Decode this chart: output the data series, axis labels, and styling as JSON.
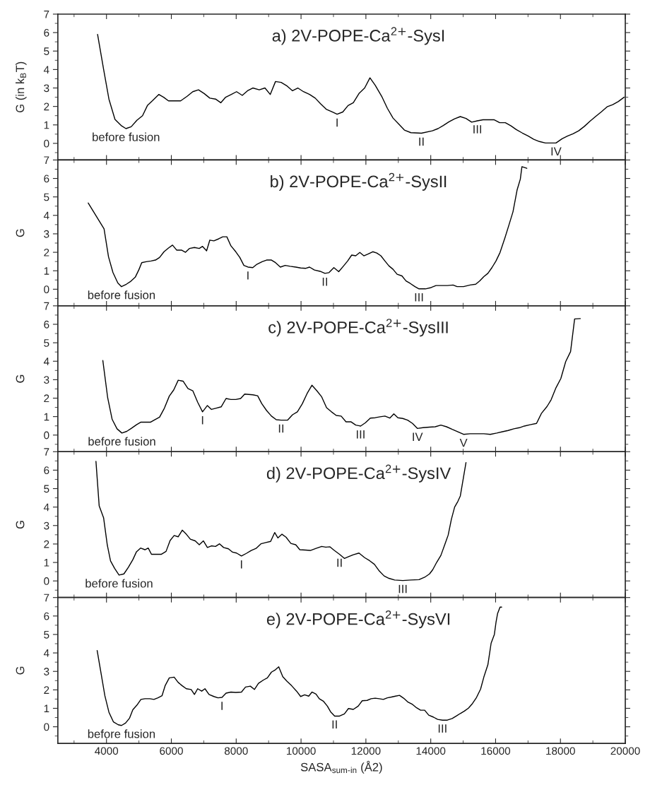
{
  "chart_data": [
    {
      "type": "line",
      "title": "a) 2V-POPE-Ca$^{2+}$-SysI",
      "ylabel": "G (in k$_{B}$T)",
      "color": "#000000",
      "tick_labels": "y",
      "xlim": [
        2500,
        20000
      ],
      "ylim": [
        -0.9,
        7
      ],
      "xticks": [
        4000,
        6000,
        8000,
        10000,
        12000,
        14000,
        16000,
        18000,
        20000
      ],
      "yticks": [
        0,
        1,
        2,
        3,
        4,
        5,
        6,
        7
      ],
      "x": [
        3725,
        3912,
        4075,
        4262,
        4450,
        4600,
        4762,
        4937,
        5112,
        5262,
        5412,
        5612,
        5762,
        5912,
        6112,
        6287,
        6487,
        6662,
        6837,
        7012,
        7187,
        7362,
        7525,
        7675,
        7850,
        8012,
        8187,
        8350,
        8512,
        8712,
        8887,
        9050,
        9212,
        9387,
        9575,
        9737,
        9900,
        10075,
        10262,
        10437,
        10600,
        10775,
        10962,
        11112,
        11287,
        11450,
        11612,
        11787,
        11962,
        12125,
        12287,
        12487,
        12662,
        12837,
        13012,
        13187,
        13387,
        13712,
        14050,
        14225,
        14387,
        14562,
        14737,
        14912,
        15087,
        15262,
        15437,
        15612,
        15950,
        16125,
        16300,
        16475,
        16637,
        16825,
        17000,
        17175,
        17350,
        17537,
        17862,
        18050,
        18225,
        18387,
        18562,
        18737,
        18912,
        19087,
        19262,
        19437,
        19612,
        19787,
        19962
      ],
      "values": [
        5.9,
        4.0,
        2.4,
        1.3,
        0.97,
        0.8,
        0.9,
        1.25,
        1.5,
        2.05,
        2.3,
        2.65,
        2.5,
        2.3,
        2.3,
        2.3,
        2.55,
        2.8,
        2.9,
        2.7,
        2.45,
        2.4,
        2.2,
        2.5,
        2.65,
        2.8,
        2.6,
        2.85,
        3.0,
        2.9,
        3.0,
        2.65,
        3.35,
        3.3,
        3.1,
        2.85,
        3.0,
        2.8,
        2.65,
        2.45,
        2.15,
        1.85,
        1.7,
        1.58,
        1.7,
        2.05,
        2.2,
        2.7,
        3.0,
        3.55,
        3.15,
        2.55,
        1.9,
        1.37,
        1.05,
        0.72,
        0.58,
        0.55,
        0.68,
        0.8,
        0.97,
        1.17,
        1.33,
        1.45,
        1.35,
        1.15,
        1.22,
        1.28,
        1.28,
        1.12,
        1.12,
        0.95,
        0.75,
        0.56,
        0.4,
        0.22,
        0.1,
        0.02,
        0.02,
        0.25,
        0.4,
        0.52,
        0.68,
        0.92,
        1.2,
        1.46,
        1.71,
        1.98,
        2.1,
        2.27,
        2.5
      ],
      "annotations": [
        {
          "text": "before fusion",
          "x": 4600,
          "y": 0.8
        },
        {
          "text": "I",
          "x": 11112,
          "y": 1.58
        },
        {
          "text": "II",
          "x": 13712,
          "y": 0.55
        },
        {
          "text": "III",
          "x": 15437,
          "y": 1.22
        },
        {
          "text": "IV",
          "x": 17862,
          "y": 0.02
        }
      ]
    },
    {
      "type": "line",
      "title": "b) 2V-POPE-Ca$^{2+}$-SysII",
      "ylabel": "G",
      "color": "#000000",
      "tick_labels": "y",
      "xlim": [
        2500,
        20000
      ],
      "ylim": [
        -0.9,
        7
      ],
      "xticks": [
        4000,
        6000,
        8000,
        10000,
        12000,
        14000,
        16000,
        18000,
        20000
      ],
      "yticks": [
        0,
        1,
        2,
        3,
        4,
        5,
        6,
        7
      ],
      "x": [
        3437,
        3925,
        4062,
        4200,
        4350,
        4462,
        4612,
        4750,
        4887,
        5000,
        5087,
        5225,
        5375,
        5512,
        5637,
        5775,
        5912,
        6037,
        6162,
        6312,
        6437,
        6562,
        6712,
        6862,
        6962,
        7087,
        7187,
        7312,
        7462,
        7587,
        7712,
        7837,
        7987,
        8112,
        8237,
        8362,
        8512,
        8637,
        8800,
        8937,
        9087,
        9212,
        9362,
        9512,
        9662,
        9837,
        9987,
        10137,
        10262,
        10412,
        10587,
        10737,
        10862,
        11012,
        11162,
        11312,
        11437,
        11562,
        11687,
        11812,
        11937,
        12062,
        12212,
        12337,
        12462,
        12587,
        12712,
        12837,
        12962,
        13112,
        13237,
        13362,
        13512,
        13637,
        13837,
        14012,
        14162,
        14337,
        14512,
        14687,
        14812,
        15012,
        15212,
        15387,
        15512,
        15637,
        15762,
        15887,
        16012,
        16137,
        16287,
        16412,
        16537,
        16662,
        16762,
        16812,
        16962
      ],
      "values": [
        4.67,
        3.27,
        1.76,
        0.9,
        0.34,
        0.14,
        0.27,
        0.43,
        0.65,
        1.06,
        1.44,
        1.49,
        1.53,
        1.58,
        1.72,
        2.03,
        2.23,
        2.39,
        2.12,
        2.12,
        2.0,
        2.21,
        2.26,
        2.21,
        2.32,
        2.08,
        2.66,
        2.62,
        2.73,
        2.84,
        2.84,
        2.35,
        2.03,
        1.72,
        1.29,
        1.2,
        1.17,
        1.35,
        1.49,
        1.58,
        1.58,
        1.44,
        1.2,
        1.29,
        1.24,
        1.2,
        1.15,
        1.13,
        1.2,
        1.04,
        0.97,
        0.86,
        0.9,
        1.17,
        0.95,
        1.26,
        1.53,
        1.85,
        1.81,
        1.99,
        1.81,
        1.9,
        2.03,
        1.96,
        1.81,
        1.53,
        1.26,
        1.08,
        0.81,
        0.72,
        0.45,
        0.32,
        0.14,
        0.02,
        0.02,
        0.09,
        0.2,
        0.2,
        0.2,
        0.23,
        0.14,
        0.14,
        0.23,
        0.27,
        0.45,
        0.68,
        0.86,
        1.17,
        1.53,
        1.99,
        2.78,
        3.48,
        4.2,
        5.37,
        5.96,
        6.64,
        6.55
      ],
      "annotations": [
        {
          "text": "before fusion",
          "x": 4462,
          "y": 0.14
        },
        {
          "text": "I",
          "x": 8362,
          "y": 1.2
        },
        {
          "text": "II",
          "x": 10737,
          "y": 0.86
        },
        {
          "text": "III",
          "x": 13637,
          "y": 0.02
        }
      ]
    },
    {
      "type": "line",
      "title": "c) 2V-POPE-Ca$^{2+}$-SysIII",
      "ylabel": "G",
      "color": "#000000",
      "tick_labels": "y",
      "xlim": [
        2500,
        20000
      ],
      "ylim": [
        -0.9,
        7
      ],
      "xticks": [
        4000,
        6000,
        8000,
        10000,
        12000,
        14000,
        16000,
        18000,
        20000
      ],
      "yticks": [
        0,
        1,
        2,
        3,
        4,
        5,
        6,
        7
      ],
      "x": [
        3887,
        4037,
        4175,
        4325,
        4475,
        4625,
        4762,
        4925,
        5062,
        5212,
        5362,
        5487,
        5637,
        5787,
        5937,
        6075,
        6212,
        6362,
        6512,
        6662,
        6812,
        6962,
        7112,
        7237,
        7387,
        7537,
        7687,
        7837,
        7987,
        8137,
        8262,
        8387,
        8512,
        8662,
        8787,
        8937,
        9087,
        9237,
        9387,
        9587,
        9737,
        9887,
        10037,
        10187,
        10337,
        10487,
        10637,
        10787,
        10937,
        11087,
        11237,
        11387,
        11537,
        11687,
        11837,
        11987,
        12137,
        12287,
        12437,
        12587,
        12737,
        12862,
        12987,
        13137,
        13287,
        13437,
        13587,
        13762,
        13962,
        14137,
        14312,
        14487,
        14662,
        14837,
        15012,
        15212,
        15437,
        15637,
        15837,
        16037,
        16212,
        16387,
        16562,
        16737,
        16887,
        17062,
        17262,
        17412,
        17587,
        17712,
        17862,
        18012,
        18162,
        18312,
        18437,
        18612
      ],
      "values": [
        4.04,
        2.02,
        0.85,
        0.34,
        0.11,
        0.2,
        0.36,
        0.56,
        0.7,
        0.7,
        0.7,
        0.83,
        0.97,
        1.46,
        2.11,
        2.45,
        2.97,
        2.92,
        2.52,
        2.4,
        1.78,
        1.26,
        1.6,
        1.39,
        1.46,
        1.53,
        1.98,
        1.93,
        1.93,
        1.98,
        2.22,
        2.2,
        2.18,
        2.13,
        1.71,
        1.33,
        1.03,
        0.83,
        0.81,
        0.81,
        1.1,
        1.26,
        1.69,
        2.25,
        2.7,
        2.4,
        2.07,
        1.48,
        1.26,
        1.06,
        1.03,
        0.72,
        0.72,
        0.54,
        0.49,
        0.67,
        0.92,
        0.94,
        0.99,
        1.03,
        0.92,
        1.15,
        0.94,
        0.9,
        0.81,
        0.63,
        0.36,
        0.4,
        0.43,
        0.45,
        0.54,
        0.45,
        0.31,
        0.18,
        0.04,
        0.07,
        0.07,
        0.07,
        0.04,
        0.11,
        0.18,
        0.25,
        0.34,
        0.4,
        0.49,
        0.56,
        0.63,
        1.17,
        1.55,
        1.91,
        2.56,
        3.06,
        3.98,
        4.52,
        6.29,
        6.31
      ],
      "annotations": [
        {
          "text": "before fusion",
          "x": 4475,
          "y": 0.11
        },
        {
          "text": "I",
          "x": 6962,
          "y": 1.26
        },
        {
          "text": "II",
          "x": 9387,
          "y": 0.81
        },
        {
          "text": "III",
          "x": 11837,
          "y": 0.49
        },
        {
          "text": "IV",
          "x": 13587,
          "y": 0.36
        },
        {
          "text": "V",
          "x": 15012,
          "y": 0.04
        }
      ]
    },
    {
      "type": "line",
      "title": "d) 2V-POPE-Ca$^{2+}$-SysIV",
      "ylabel": "G",
      "color": "#000000",
      "tick_labels": "y",
      "xlim": [
        2500,
        20000
      ],
      "ylim": [
        -0.9,
        7
      ],
      "xticks": [
        4000,
        6000,
        8000,
        10000,
        12000,
        14000,
        16000,
        18000,
        20000
      ],
      "yticks": [
        0,
        1,
        2,
        3,
        4,
        5,
        6,
        7
      ],
      "x": [
        3675,
        3775,
        3912,
        4025,
        4125,
        4250,
        4387,
        4537,
        4675,
        4812,
        4925,
        5050,
        5187,
        5287,
        5387,
        5537,
        5687,
        5837,
        5962,
        6087,
        6212,
        6337,
        6462,
        6587,
        6737,
        6862,
        6987,
        7112,
        7237,
        7362,
        7487,
        7612,
        7762,
        7887,
        8012,
        8162,
        8312,
        8462,
        8612,
        8762,
        8912,
        9062,
        9187,
        9287,
        9412,
        9537,
        9687,
        9837,
        9962,
        10137,
        10287,
        10462,
        10637,
        10762,
        10887,
        11012,
        11187,
        11337,
        11462,
        11612,
        11787,
        11962,
        12112,
        12262,
        12412,
        12562,
        12712,
        12887,
        13137,
        13387,
        13637,
        13812,
        13962,
        14062,
        14187,
        14312,
        14437,
        14537,
        14637,
        14737,
        14837,
        14912,
        15012,
        15087
      ],
      "values": [
        6.48,
        4.06,
        3.41,
        1.94,
        1.08,
        0.68,
        0.32,
        0.38,
        0.74,
        1.15,
        1.58,
        1.78,
        1.69,
        1.78,
        1.44,
        1.44,
        1.44,
        1.6,
        2.19,
        2.46,
        2.39,
        2.75,
        2.53,
        2.26,
        2.17,
        1.96,
        2.17,
        1.81,
        1.9,
        1.87,
        2.01,
        1.81,
        1.74,
        1.56,
        1.51,
        1.35,
        1.49,
        1.65,
        1.76,
        2.01,
        2.08,
        2.14,
        2.62,
        2.33,
        2.53,
        2.37,
        2.03,
        1.96,
        1.69,
        1.67,
        1.65,
        1.76,
        1.87,
        1.83,
        1.85,
        1.67,
        1.44,
        1.22,
        1.31,
        1.42,
        1.51,
        1.26,
        1.1,
        0.9,
        0.54,
        0.27,
        0.14,
        0.05,
        0.02,
        0.05,
        0.07,
        0.2,
        0.38,
        0.61,
        1.02,
        1.38,
        1.99,
        2.48,
        3.34,
        4.0,
        4.31,
        4.6,
        5.64,
        6.41
      ],
      "annotations": [
        {
          "text": "before fusion",
          "x": 4387,
          "y": 0.32
        },
        {
          "text": "I",
          "x": 8162,
          "y": 1.35
        },
        {
          "text": "II",
          "x": 11187,
          "y": 1.44
        },
        {
          "text": "III",
          "x": 13137,
          "y": 0.02
        }
      ]
    },
    {
      "type": "line",
      "title": "e) 2V-POPE-Ca$^{2+}$-SysVI",
      "ylabel": "G",
      "xlabel": "SASA$_{sum-in}$ (Å2)",
      "color": "#000000",
      "xlim": [
        2500,
        20000
      ],
      "ylim": [
        -0.9,
        7
      ],
      "xticks": [
        4000,
        6000,
        8000,
        10000,
        12000,
        14000,
        16000,
        18000,
        20000
      ],
      "yticks": [
        0,
        1,
        2,
        3,
        4,
        5,
        6,
        7
      ],
      "x": [
        3712,
        3837,
        3950,
        4075,
        4212,
        4362,
        4462,
        4587,
        4712,
        4812,
        4937,
        5062,
        5187,
        5337,
        5462,
        5587,
        5712,
        5812,
        5937,
        6087,
        6212,
        6337,
        6462,
        6612,
        6712,
        6812,
        6937,
        7037,
        7162,
        7312,
        7437,
        7562,
        7687,
        7837,
        7987,
        8162,
        8287,
        8437,
        8562,
        8687,
        8837,
        8962,
        9087,
        9212,
        9312,
        9437,
        9562,
        9712,
        9862,
        9987,
        10112,
        10237,
        10337,
        10462,
        10562,
        10687,
        10812,
        10912,
        11037,
        11187,
        11337,
        11462,
        11612,
        11762,
        11887,
        12037,
        12162,
        12287,
        12412,
        12537,
        12662,
        12787,
        12912,
        13037,
        13162,
        13287,
        13437,
        13562,
        13687,
        13812,
        13937,
        14087,
        14212,
        14362,
        14512,
        14662,
        14787,
        14912,
        15037,
        15162,
        15287,
        15412,
        15537,
        15637,
        15762,
        15862,
        15962,
        16012,
        16062,
        16137,
        16187
      ],
      "values": [
        4.13,
        2.85,
        1.68,
        0.79,
        0.27,
        0.11,
        0.07,
        0.2,
        0.47,
        0.92,
        1.17,
        1.48,
        1.52,
        1.52,
        1.48,
        1.57,
        1.68,
        2.24,
        2.65,
        2.69,
        2.4,
        2.22,
        2.06,
        2.02,
        1.75,
        2.06,
        1.93,
        2.06,
        1.75,
        1.64,
        1.57,
        1.59,
        1.82,
        1.88,
        1.86,
        1.88,
        2.15,
        2.2,
        2.02,
        2.35,
        2.53,
        2.65,
        2.96,
        3.09,
        3.25,
        2.71,
        2.47,
        2.22,
        1.93,
        1.64,
        1.73,
        1.66,
        1.88,
        1.77,
        1.52,
        1.39,
        1.12,
        0.81,
        0.58,
        0.58,
        0.7,
        0.99,
        0.94,
        1.12,
        1.41,
        1.43,
        1.52,
        1.55,
        1.52,
        1.48,
        1.57,
        1.61,
        1.66,
        1.7,
        1.55,
        1.35,
        1.21,
        1.03,
        0.9,
        0.9,
        0.63,
        0.52,
        0.4,
        0.36,
        0.36,
        0.45,
        0.58,
        0.72,
        0.85,
        1.01,
        1.26,
        1.59,
        2.04,
        2.69,
        3.36,
        4.53,
        5.0,
        5.65,
        6.14,
        6.48,
        6.48
      ],
      "annotations": [
        {
          "text": "before fusion",
          "x": 4462,
          "y": 0.07
        },
        {
          "text": "I",
          "x": 7562,
          "y": 1.59
        },
        {
          "text": "II",
          "x": 11037,
          "y": 0.58
        },
        {
          "text": "III",
          "x": 14362,
          "y": 0.36
        }
      ]
    }
  ]
}
